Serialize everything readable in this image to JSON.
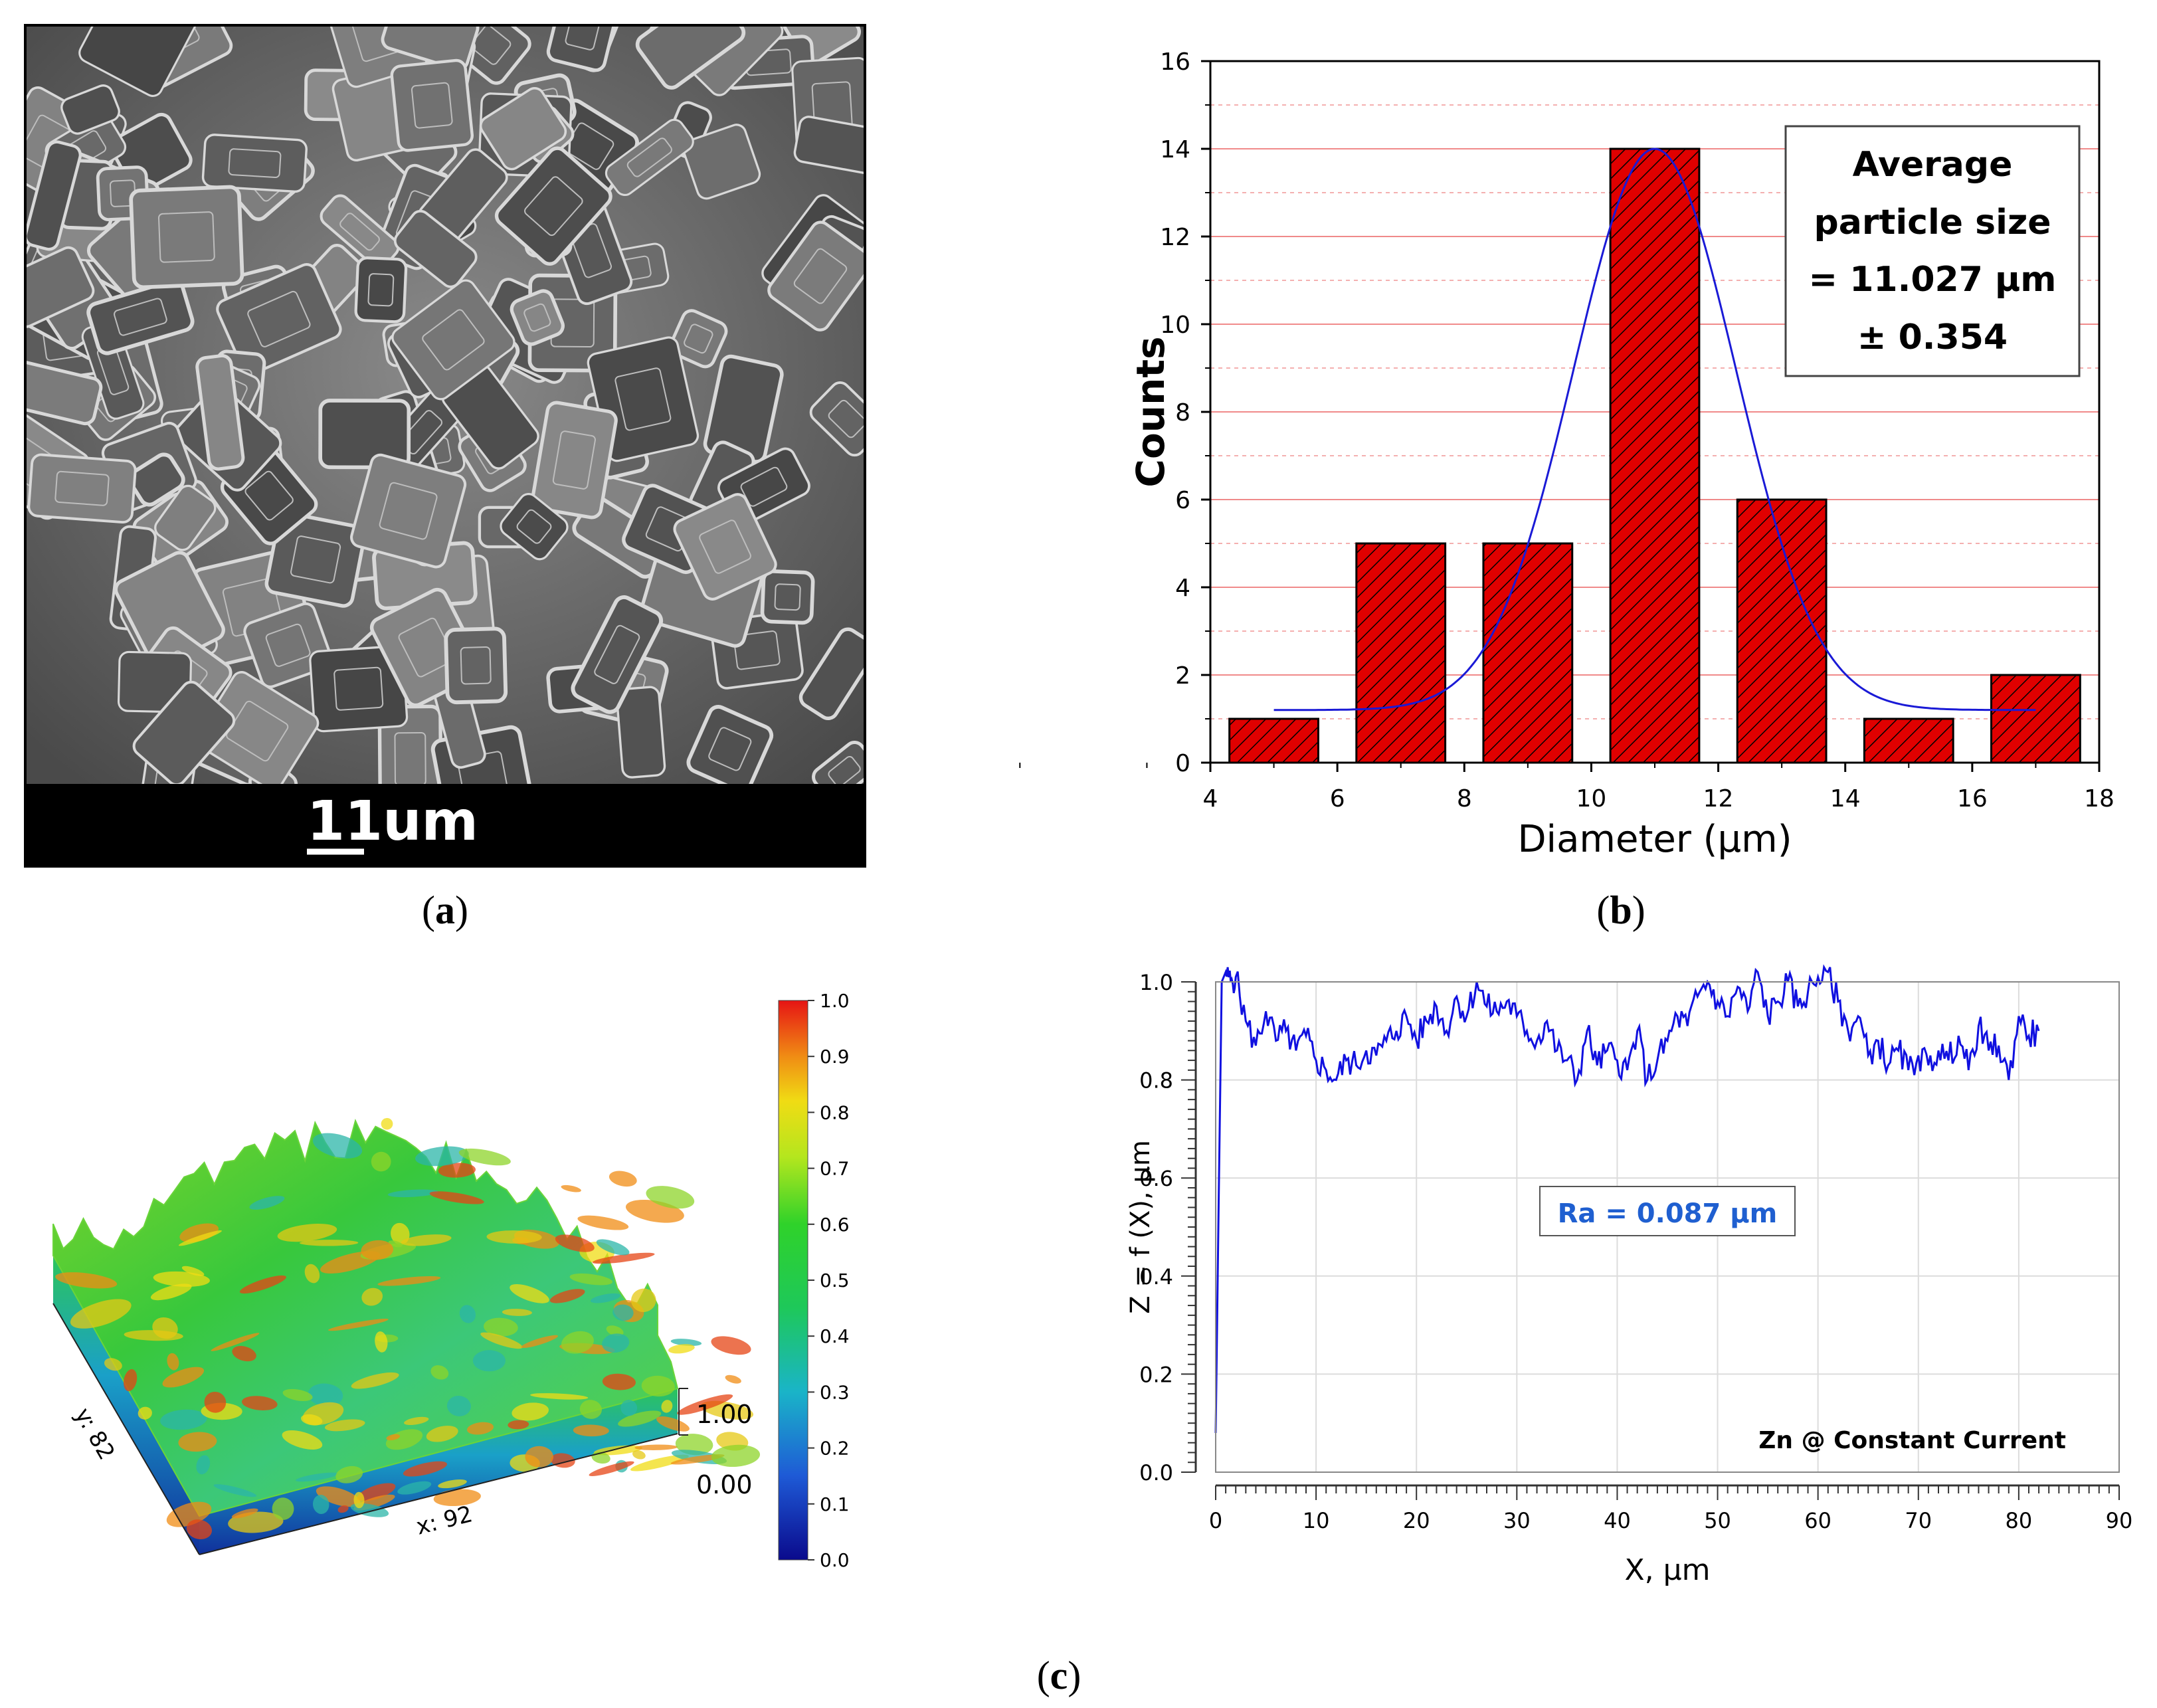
{
  "panels": {
    "a": {
      "label": "(a)",
      "label_letter": "a",
      "scale_bar_text": "11um"
    },
    "b": {
      "label": "(b)",
      "label_letter": "b"
    },
    "c": {
      "label": "(c)",
      "label_letter": "c"
    }
  },
  "colors": {
    "bar_fill": "#e00000",
    "fit_line": "#1a1ad6",
    "grid_major": "#f08a8a",
    "grid_minor": "#f4b0b0",
    "profile_line": "#1010e0",
    "ra_text": "#1f5fd0"
  },
  "surface3d": {
    "x_label": "x: 92",
    "y_label": "y: 82",
    "z_ticks": [
      "1.00",
      "0.00"
    ],
    "colorbar_ticks": [
      "1.0",
      "0.9",
      "0.8",
      "0.7",
      "0.6",
      "0.5",
      "0.4",
      "0.3",
      "0.2",
      "0.1",
      "0.0"
    ]
  },
  "chart_data": [
    {
      "type": "bar",
      "title": "",
      "xlabel": "Diameter (μm)",
      "ylabel": "Counts",
      "categories": [
        "5",
        "7",
        "9",
        "11",
        "13",
        "15",
        "17"
      ],
      "x": [
        5,
        7,
        9,
        11,
        13,
        15,
        17
      ],
      "values": [
        1,
        5,
        5,
        14,
        6,
        1,
        2
      ],
      "bar_width": 1.4,
      "xlim": [
        4,
        18
      ],
      "ylim": [
        0,
        16
      ],
      "xticks": [
        "4",
        "6",
        "8",
        "10",
        "12",
        "14",
        "16",
        "18"
      ],
      "yticks": [
        "0",
        "2",
        "4",
        "6",
        "8",
        "10",
        "12",
        "14",
        "16"
      ],
      "fit_curve": {
        "type": "gaussian",
        "center": 11.0,
        "amplitude": 12.8,
        "sigma": 1.28,
        "baseline": 1.2,
        "x_range": [
          5,
          17
        ]
      },
      "annotation": [
        "Average",
        "particle size",
        "= 11.027 μm",
        "± 0.354"
      ],
      "grid": true
    },
    {
      "type": "line",
      "title": "",
      "xlabel": "X,  μm",
      "ylabel": "Z = f (X),  μm",
      "xlim": [
        0,
        90
      ],
      "ylim": [
        0,
        1.0
      ],
      "xticks": [
        "0",
        "10",
        "20",
        "30",
        "40",
        "50",
        "60",
        "70",
        "80",
        "90"
      ],
      "yticks": [
        "0.0",
        "0.2",
        "0.4",
        "0.6",
        "0.8",
        "1.0"
      ],
      "series": [
        {
          "name": "Zn @ Constant Current",
          "x": [
            0,
            0.3,
            0.6,
            1,
            1.5,
            2,
            3,
            4,
            5,
            6,
            7,
            8,
            9,
            10,
            11,
            12,
            13,
            14,
            15,
            16,
            17,
            18,
            19,
            20,
            21,
            22,
            23,
            24,
            25,
            26,
            27,
            28,
            29,
            30,
            31,
            32,
            33,
            34,
            35,
            36,
            37,
            38,
            39,
            40,
            41,
            42,
            43,
            44,
            45,
            46,
            47,
            48,
            49,
            50,
            51,
            52,
            53,
            54,
            55,
            56,
            57,
            58,
            59,
            60,
            61,
            62,
            63,
            64,
            65,
            66,
            67,
            68,
            69,
            70,
            71,
            72,
            73,
            74,
            75,
            76,
            77,
            78,
            79,
            80,
            81,
            82
          ],
          "values": [
            0.08,
            0.55,
            1.0,
            1.02,
            1.0,
            1.01,
            0.92,
            0.87,
            0.94,
            0.88,
            0.9,
            0.86,
            0.89,
            0.84,
            0.82,
            0.8,
            0.84,
            0.83,
            0.86,
            0.85,
            0.88,
            0.9,
            0.93,
            0.88,
            0.92,
            0.95,
            0.9,
            0.97,
            0.93,
            1.0,
            0.95,
            0.94,
            0.96,
            0.93,
            0.9,
            0.88,
            0.92,
            0.86,
            0.84,
            0.8,
            0.9,
            0.83,
            0.86,
            0.84,
            0.82,
            0.9,
            0.8,
            0.84,
            0.88,
            0.93,
            0.91,
            0.97,
            1.0,
            0.96,
            0.93,
            0.99,
            0.94,
            1.02,
            0.93,
            0.96,
            1.0,
            0.95,
            0.98,
            1.01,
            1.02,
            0.96,
            0.9,
            0.93,
            0.85,
            0.88,
            0.83,
            0.86,
            0.82,
            0.85,
            0.83,
            0.86,
            0.84,
            0.89,
            0.82,
            0.91,
            0.86,
            0.87,
            0.8,
            0.93,
            0.89,
            0.9
          ]
        }
      ],
      "annotation": "Ra = 0.087 µm",
      "legend_text": "Zn @ Constant Current",
      "grid": true
    }
  ]
}
